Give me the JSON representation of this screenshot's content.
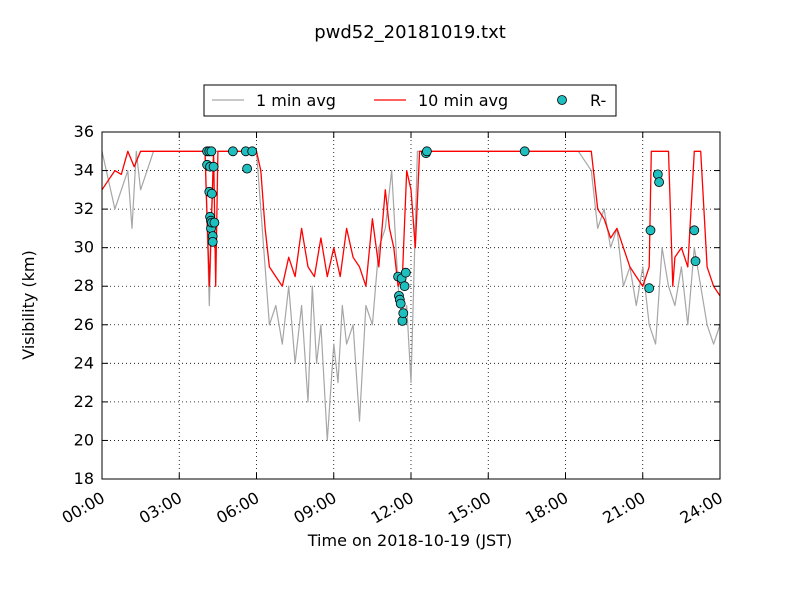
{
  "chart_data": {
    "type": "line",
    "title": "pwd52_20181019.txt",
    "xlabel": "Time on 2018-10-19 (JST)",
    "ylabel": "Visibility (km)",
    "xlim": [
      "00:00",
      "24:00"
    ],
    "ylim": [
      18,
      36
    ],
    "x_ticks": [
      "00:00",
      "03:00",
      "06:00",
      "09:00",
      "12:00",
      "15:00",
      "18:00",
      "21:00",
      "24:00"
    ],
    "y_ticks": [
      "18",
      "20",
      "22",
      "24",
      "26",
      "28",
      "30",
      "32",
      "34",
      "36"
    ],
    "grid": true,
    "legend_position": "top-center",
    "legend": [
      "1 min avg",
      "10 min avg",
      "R-"
    ],
    "colors": {
      "one_min": "#a6a6a6",
      "ten_min": "#ff0000",
      "marker_fill": "#1fbfbf",
      "marker_edge": "#000000"
    },
    "series": [
      {
        "name": "1 min avg",
        "style": "line",
        "x": [
          "00:00",
          "00:30",
          "01:00",
          "01:10",
          "01:20",
          "01:30",
          "01:45",
          "02:00",
          "02:30",
          "03:00",
          "03:30",
          "04:00",
          "04:10",
          "04:20",
          "04:30",
          "05:00",
          "05:30",
          "06:00",
          "06:10",
          "06:20",
          "06:30",
          "06:45",
          "07:00",
          "07:15",
          "07:30",
          "07:45",
          "08:00",
          "08:10",
          "08:20",
          "08:30",
          "08:45",
          "09:00",
          "09:10",
          "09:20",
          "09:30",
          "09:45",
          "10:00",
          "10:15",
          "10:30",
          "10:45",
          "11:00",
          "11:15",
          "11:30",
          "11:40",
          "11:50",
          "12:00",
          "12:15",
          "12:30",
          "12:45",
          "13:00",
          "14:00",
          "15:00",
          "16:00",
          "16:30",
          "17:00",
          "18:00",
          "18:30",
          "19:00",
          "19:15",
          "19:30",
          "19:45",
          "20:00",
          "20:15",
          "20:30",
          "20:45",
          "21:00",
          "21:15",
          "21:30",
          "21:45",
          "22:00",
          "22:15",
          "22:30",
          "22:45",
          "23:00",
          "23:15",
          "23:30",
          "23:45",
          "24:00"
        ],
        "y": [
          35,
          32,
          34,
          31,
          35,
          33,
          34,
          35,
          35,
          35,
          35,
          35,
          27,
          35,
          35,
          35,
          35,
          35,
          32,
          29,
          26,
          27,
          25,
          28,
          24,
          27,
          22,
          28,
          24,
          26,
          20,
          25,
          23,
          27,
          25,
          26,
          21,
          27,
          26,
          30,
          31,
          34,
          28,
          26,
          27,
          23,
          35,
          35,
          35,
          35,
          35,
          35,
          35,
          35,
          35,
          35,
          35,
          34,
          31,
          32,
          30,
          31,
          28,
          29,
          27,
          29,
          26,
          25,
          30,
          28,
          27,
          29,
          26,
          30,
          28,
          26,
          25,
          26
        ]
      },
      {
        "name": "10 min avg",
        "style": "line",
        "x": [
          "00:00",
          "00:15",
          "00:30",
          "00:45",
          "01:00",
          "01:15",
          "01:30",
          "02:00",
          "03:00",
          "04:00",
          "04:10",
          "04:20",
          "04:25",
          "04:30",
          "05:00",
          "05:45",
          "06:00",
          "06:10",
          "06:20",
          "06:30",
          "06:45",
          "07:00",
          "07:15",
          "07:30",
          "07:45",
          "08:00",
          "08:15",
          "08:30",
          "08:45",
          "09:00",
          "09:15",
          "09:30",
          "09:45",
          "10:00",
          "10:15",
          "10:30",
          "10:45",
          "11:00",
          "11:10",
          "11:20",
          "11:30",
          "11:40",
          "11:50",
          "12:00",
          "12:10",
          "12:20",
          "12:30",
          "12:40",
          "13:00",
          "14:00",
          "15:00",
          "16:00",
          "17:00",
          "18:00",
          "19:00",
          "19:15",
          "19:30",
          "19:45",
          "20:00",
          "20:15",
          "20:30",
          "20:45",
          "21:00",
          "21:15",
          "21:20",
          "21:30",
          "21:45",
          "22:00",
          "22:10",
          "22:15",
          "22:30",
          "22:45",
          "23:00",
          "23:15",
          "23:30",
          "23:45",
          "24:00"
        ],
        "y": [
          33,
          33.5,
          34,
          33.8,
          35,
          34.2,
          35,
          35,
          35,
          35,
          28,
          35,
          28,
          35,
          35,
          35,
          35,
          34,
          31,
          29,
          28.5,
          28,
          29.5,
          28.5,
          31,
          29,
          28.5,
          30.5,
          28.5,
          30,
          28.5,
          31,
          29.5,
          29,
          28,
          31.5,
          29,
          33,
          31,
          30,
          28,
          28.5,
          34,
          33,
          30,
          35,
          35,
          35,
          35,
          35,
          35,
          35,
          35,
          35,
          35,
          32,
          31.5,
          30.5,
          31,
          30,
          29,
          28.5,
          28,
          29,
          35,
          35,
          35,
          35,
          28,
          29.5,
          30,
          29,
          35,
          35,
          29,
          28,
          27.5
        ]
      },
      {
        "name": "R-",
        "style": "markers",
        "x": [
          "04:05",
          "04:05",
          "04:10",
          "04:10",
          "04:12",
          "04:12",
          "04:14",
          "04:14",
          "04:15",
          "04:16",
          "04:16",
          "04:18",
          "04:18",
          "04:20",
          "04:22",
          "05:05",
          "05:35",
          "05:38",
          "05:50",
          "11:30",
          "11:32",
          "11:34",
          "11:36",
          "11:38",
          "11:40",
          "11:42",
          "11:45",
          "11:48",
          "12:35",
          "12:37",
          "16:25",
          "21:15",
          "21:18",
          "21:35",
          "21:38",
          "23:00",
          "23:03"
        ],
        "y": [
          35,
          34.3,
          32.9,
          35,
          31.6,
          34.2,
          31.4,
          31,
          35,
          31.3,
          32.8,
          30.6,
          30.3,
          34.2,
          31.3,
          35,
          35,
          34.1,
          35,
          28.5,
          27.5,
          27.3,
          27.1,
          28.4,
          26.2,
          26.6,
          28,
          28.7,
          34.9,
          35,
          35,
          27.9,
          30.9,
          33.8,
          33.4,
          30.9,
          29.3
        ]
      }
    ]
  }
}
